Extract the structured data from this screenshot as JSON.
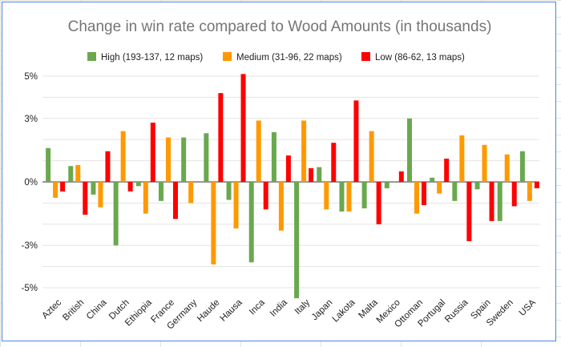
{
  "chart_data": {
    "type": "bar",
    "title": "Change in win rate compared to Wood Amounts  (in thousands)",
    "xlabel": "",
    "ylabel": "",
    "ylim": [
      -6,
      6
    ],
    "yticks": [
      -5,
      -3,
      0,
      3,
      5
    ],
    "ytick_labels": [
      "-5%",
      "-3%",
      "0%",
      "3%",
      "5%"
    ],
    "grid": true,
    "legend_position": "top",
    "categories": [
      "Aztec",
      "British",
      "China",
      "Dutch",
      "Ethiopia",
      "France",
      "Germany",
      "Haude",
      "Hausa",
      "Inca",
      "India",
      "Italy",
      "Japan",
      "Lakota",
      "Malta",
      "Mexico",
      "Ottoman",
      "Portugal",
      "Russia",
      "Spain",
      "Sweden",
      "USA"
    ],
    "series": [
      {
        "name": "High (193-137, 12 maps)",
        "color": "#6aa84f",
        "values": [
          1.6,
          0.75,
          -0.6,
          -3.0,
          -0.2,
          -0.9,
          2.1,
          2.3,
          -0.85,
          -3.8,
          2.35,
          -5.5,
          0.7,
          -1.4,
          -1.25,
          -0.3,
          3.0,
          0.2,
          -0.9,
          -0.35,
          -1.85,
          1.45
        ]
      },
      {
        "name": "Medium (31-96, 22 maps)",
        "color": "#ff9900",
        "values": [
          -0.75,
          0.8,
          -1.2,
          2.4,
          -1.5,
          2.1,
          -1.0,
          -3.9,
          -2.2,
          2.9,
          -2.3,
          2.9,
          -1.3,
          -1.4,
          2.4,
          0.0,
          -1.5,
          -0.55,
          2.2,
          1.75,
          1.3,
          -0.9
        ]
      },
      {
        "name": "Low (86-62, 13 maps)",
        "color": "#ff0000",
        "values": [
          -0.45,
          -1.55,
          1.45,
          -0.45,
          2.8,
          -1.75,
          0.0,
          4.2,
          5.1,
          -1.3,
          1.25,
          0.65,
          1.85,
          3.85,
          -2.0,
          0.5,
          -1.1,
          1.1,
          -2.8,
          -1.85,
          -1.15,
          -0.3
        ]
      }
    ]
  }
}
